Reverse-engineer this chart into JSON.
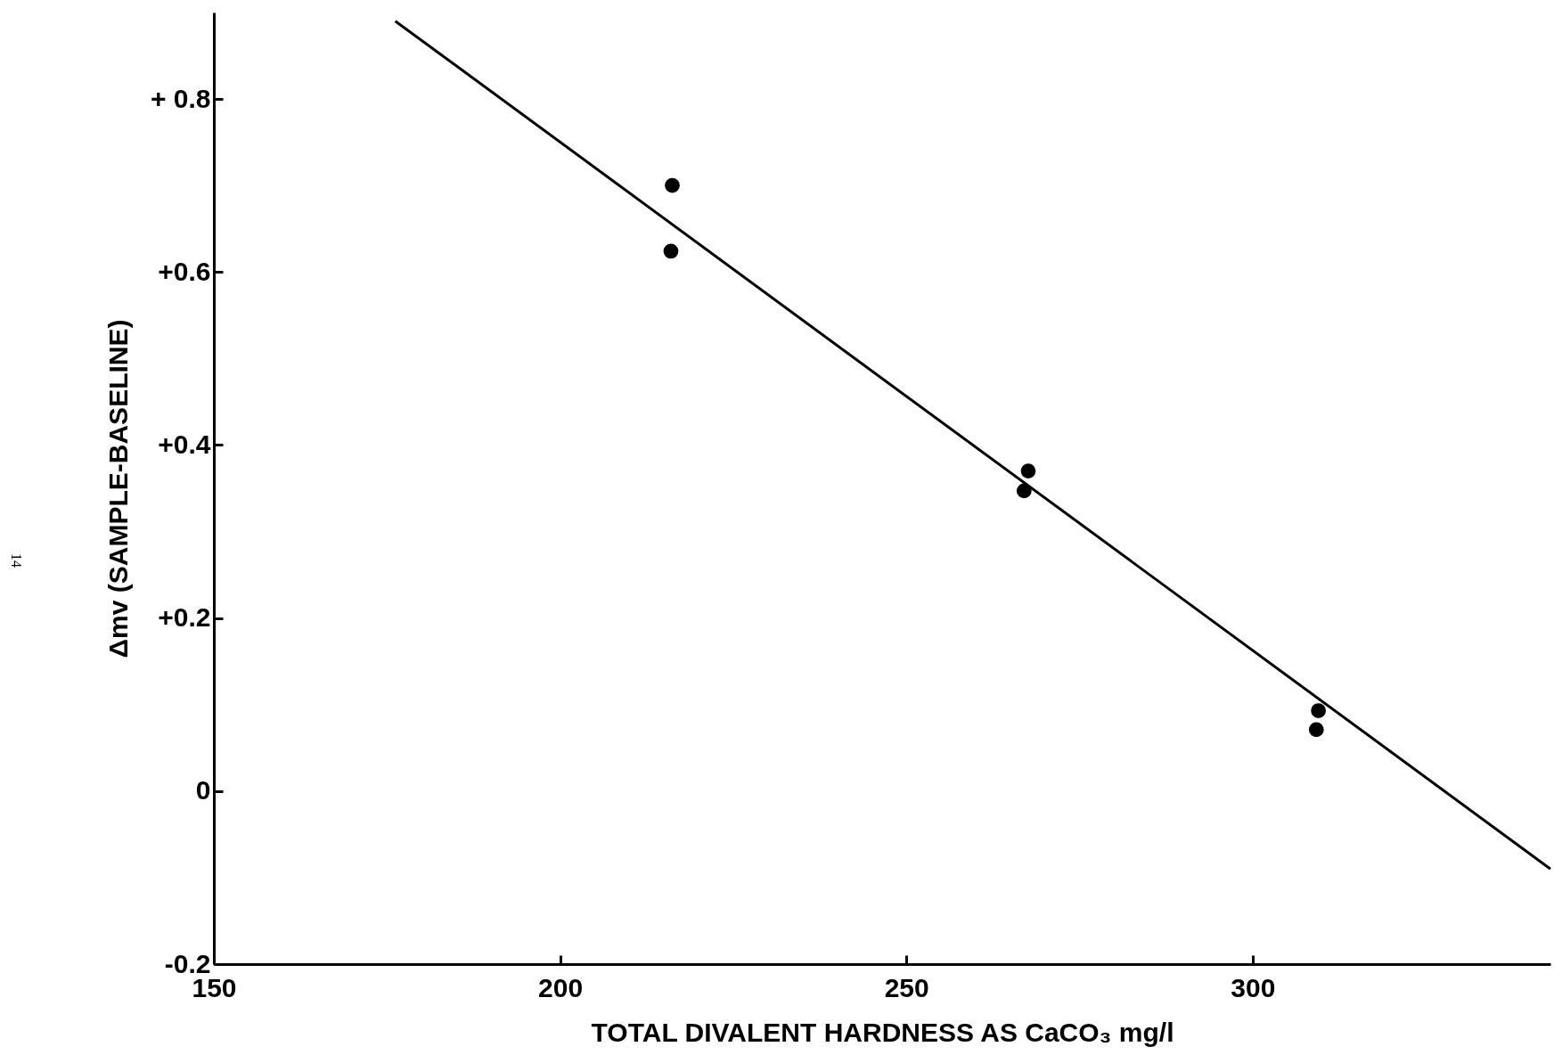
{
  "chart_data": {
    "type": "scatter",
    "xlabel": "TOTAL DIVALENT HARDNESS AS CaCO₃ mg/l",
    "ylabel": "Δmv (SAMPLE-BASELINE)",
    "xlim": [
      150,
      343
    ],
    "ylim": [
      -0.2,
      0.9
    ],
    "xticks": [
      150,
      200,
      250,
      300
    ],
    "yticks": [
      {
        "value": -0.2,
        "label": "-0.2"
      },
      0,
      {
        "value": 0.2,
        "label": "+0.2"
      },
      {
        "value": 0.4,
        "label": "+0.4"
      },
      {
        "value": 0.6,
        "label": "+0.6"
      },
      {
        "value": 0.8,
        "label": "+ 0.8"
      }
    ],
    "grid": false,
    "marker": "circle",
    "annotations": [
      "14"
    ],
    "series": [
      {
        "color": "#000000",
        "x": [
          216.2,
          216.0,
          267.6,
          267.0,
          309.5,
          309.2
        ],
        "values": [
          0.7,
          0.624,
          0.37,
          0.347,
          0.093,
          0.071
        ]
      },
      {
        "type": "line",
        "color": "#000000",
        "line_style": "solid",
        "marker": "none",
        "x": [
          176.2,
          343
        ],
        "values": [
          0.89,
          -0.09
        ]
      }
    ]
  }
}
